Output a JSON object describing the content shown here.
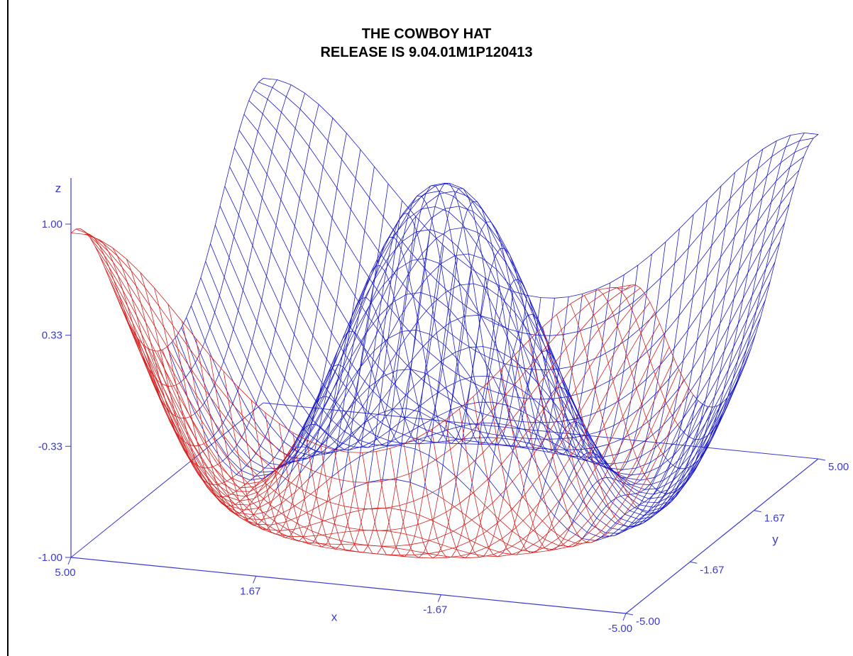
{
  "chart_data": {
    "type": "surface",
    "title": "THE COWBOY HAT",
    "subtitle": "RELEASE IS 9.04.01M1P120413",
    "xlabel": "x",
    "ylabel": "y",
    "zlabel": "z",
    "xlim": [
      -5,
      5
    ],
    "ylim": [
      -5,
      5
    ],
    "zlim": [
      -1,
      1
    ],
    "x_ticks": [
      "5.00",
      "1.67",
      "-1.67",
      "-5.00"
    ],
    "y_ticks": [
      "-5.00",
      "-1.67",
      "1.67",
      "5.00"
    ],
    "z_ticks": [
      "-1.00",
      "-0.33",
      "0.33",
      "1.00"
    ],
    "function": "z = sin(x*x + y*y) / 2 ... rendered as sin(sqrt(x^2+y^2)) style cowboy hat",
    "grid_n": 40,
    "colors": {
      "front": "#d42020",
      "back": "#1a1ac8",
      "axes": "#3a3ad0"
    }
  }
}
